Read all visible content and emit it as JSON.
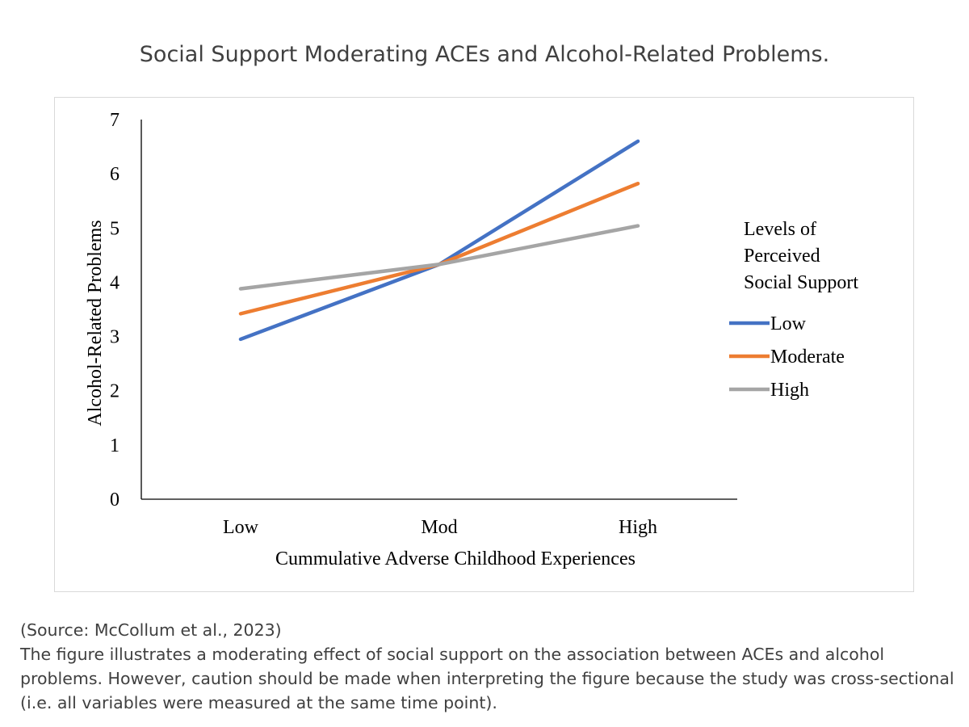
{
  "page": {
    "title": "Social Support Moderating ACEs and Alcohol-Related Problems."
  },
  "caption": {
    "source": "(Source: McCollum et al., 2023)",
    "text": "The figure illustrates a moderating effect of social support on the association between ACEs and alcohol problems. However, caution should be made when interpreting the figure because the study was cross-sectional (i.e. all variables were measured at the same time point)."
  },
  "chart_data": {
    "type": "line",
    "title": "",
    "xlabel": "Cummulative Adverse Childhood Experiences",
    "ylabel": "Alcohol-Related Problems",
    "categories": [
      "Low",
      "Mod",
      "High"
    ],
    "ylim": [
      0,
      7
    ],
    "yticks": [
      "0",
      "1",
      "2",
      "3",
      "4",
      "5",
      "6",
      "7"
    ],
    "grid": false,
    "legend": {
      "title_lines": [
        "Levels of",
        "Perceived",
        "Social Support"
      ],
      "placement": "right"
    },
    "series": [
      {
        "name": "Low",
        "color": "#4472c4",
        "values": [
          2.95,
          4.33,
          6.6
        ]
      },
      {
        "name": "Moderate",
        "color": "#ed7d31",
        "values": [
          3.42,
          4.33,
          5.82
        ]
      },
      {
        "name": "High",
        "color": "#a5a5a5",
        "values": [
          3.88,
          4.33,
          5.04
        ]
      }
    ]
  }
}
